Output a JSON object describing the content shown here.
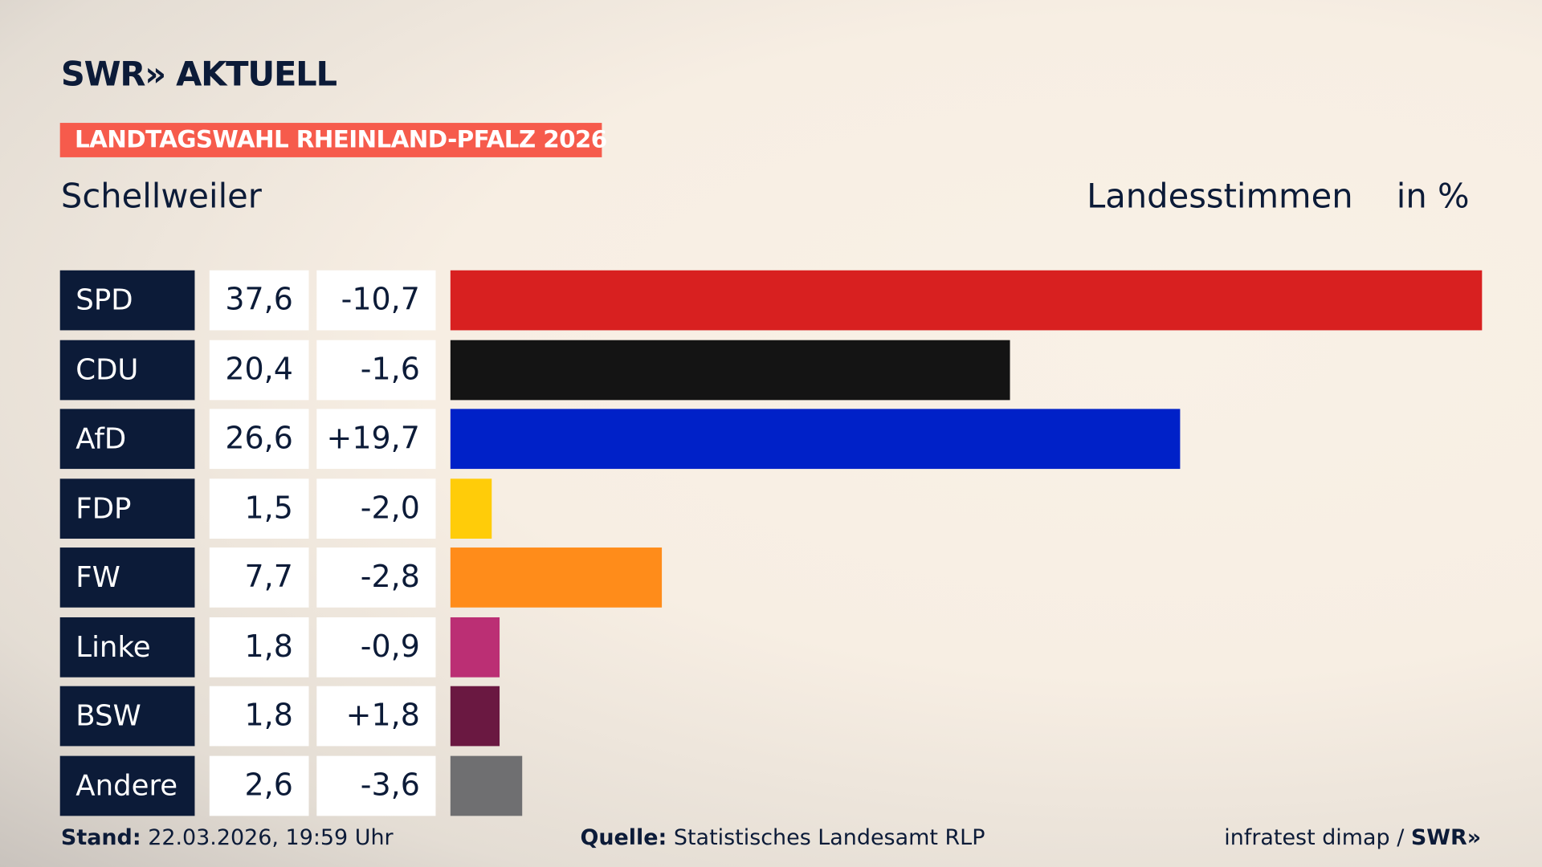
{
  "header": {
    "logo": "SWR» AKTUELL",
    "banner": "LANDTAGSWAHL RHEINLAND-PFALZ 2026",
    "place": "Schellweiler",
    "metric": "Landesstimmen",
    "unit": "in %"
  },
  "chart_data": {
    "type": "bar",
    "orientation": "horizontal",
    "categories": [
      "SPD",
      "CDU",
      "AfD",
      "FDP",
      "FW",
      "Linke",
      "BSW",
      "Andere"
    ],
    "values": [
      37.6,
      20.4,
      26.6,
      1.5,
      7.7,
      1.8,
      1.8,
      2.6
    ],
    "value_labels": [
      "37,6",
      "20,4",
      "26,6",
      "1,5",
      "7,7",
      "1,8",
      "1,8",
      "2,6"
    ],
    "diff_labels": [
      "-10,7",
      "-1,6",
      "+19,7",
      "-2,0",
      "-2,8",
      "-0,9",
      "+1,8",
      "-3,6"
    ],
    "colors": [
      "#d82020",
      "#141414",
      "#0021c8",
      "#ffcc09",
      "#ff8c1a",
      "#bb2f74",
      "#6a1841",
      "#6f6f71"
    ],
    "xlim": [
      0,
      37.6
    ],
    "grid": false
  },
  "footer": {
    "stand_label": "Stand:",
    "stand_value": "22.03.2026, 19:59 Uhr",
    "source_label": "Quelle:",
    "source_value": "Statistisches Landesamt RLP",
    "credit": "infratest dimap / ",
    "credit_logo": "SWR»"
  }
}
